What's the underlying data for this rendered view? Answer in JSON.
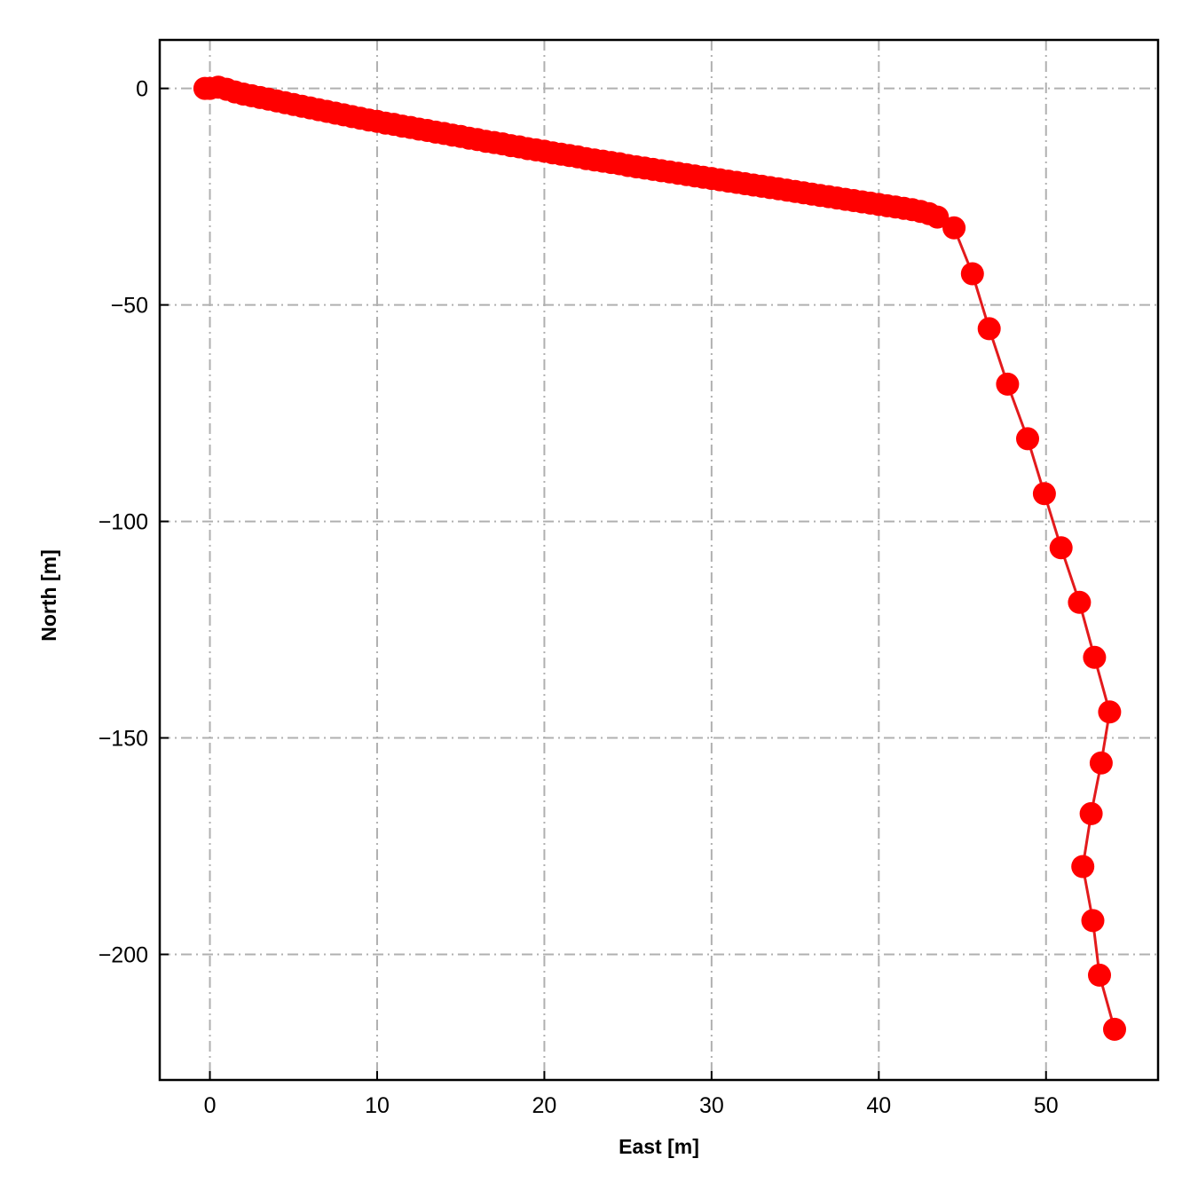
{
  "chart_data": {
    "type": "line",
    "title": "",
    "xlabel": "East [m]",
    "ylabel": "North [m]",
    "xlim": [
      -3,
      56.7
    ],
    "ylim": [
      -229,
      11.2
    ],
    "xticks": [
      0,
      10,
      20,
      30,
      40,
      50
    ],
    "yticks": [
      0,
      -50,
      -100,
      -150,
      -200
    ],
    "xtick_labels": [
      "0",
      "10",
      "20",
      "30",
      "40",
      "50"
    ],
    "ytick_labels": [
      "0",
      "−50",
      "−100",
      "−150",
      "−200"
    ],
    "grid": true,
    "grid_style": "dash-dot",
    "grid_color": "#b0b0b0",
    "line_color": "#e31a1c",
    "marker_color": "#ff0000",
    "marker": "circle",
    "series": [
      {
        "x": [
          -0.3,
          0.0,
          0.5,
          1.0,
          1.5,
          2.0,
          2.5,
          3.0,
          3.5,
          4.0,
          4.5,
          5.0,
          5.5,
          6.0,
          6.5,
          7.0,
          7.5,
          8.0,
          8.5,
          9.0,
          9.5,
          10.0,
          10.5,
          11.0,
          11.5,
          12.0,
          12.5,
          13.0,
          13.5,
          14.0,
          14.5,
          15.0,
          15.5,
          16.0,
          16.5,
          17.0,
          17.5,
          18.0,
          18.5,
          19.0,
          19.5,
          20.0,
          20.5,
          21.0,
          21.5,
          22.0,
          22.5,
          23.0,
          23.5,
          24.0,
          24.5,
          25.0,
          25.5,
          26.0,
          26.5,
          27.0,
          27.5,
          28.0,
          28.5,
          29.0,
          29.5,
          30.0,
          30.5,
          31.0,
          31.5,
          32.0,
          32.5,
          33.0,
          33.5,
          34.0,
          34.5,
          35.0,
          35.5,
          36.0,
          36.5,
          37.0,
          37.5,
          38.0,
          38.5,
          39.0,
          39.5,
          40.0,
          40.5,
          41.0,
          41.5,
          42.0,
          42.5,
          43.0,
          43.5,
          44.5,
          45.6,
          46.6,
          47.7,
          48.9,
          49.9,
          50.9,
          52.0,
          52.9,
          53.8,
          53.3,
          52.7,
          52.2,
          52.8,
          53.2,
          54.1
        ],
        "y": [
          0.0,
          0.0,
          0.3,
          -0.2,
          -0.8,
          -1.3,
          -1.7,
          -2.1,
          -2.5,
          -2.9,
          -3.3,
          -3.7,
          -4.1,
          -4.5,
          -4.9,
          -5.3,
          -5.7,
          -6.1,
          -6.5,
          -6.9,
          -7.3,
          -7.6,
          -8.0,
          -8.3,
          -8.7,
          -9.0,
          -9.4,
          -9.7,
          -10.1,
          -10.4,
          -10.8,
          -11.1,
          -11.5,
          -11.8,
          -12.2,
          -12.5,
          -12.8,
          -13.2,
          -13.5,
          -13.9,
          -14.2,
          -14.5,
          -14.9,
          -15.2,
          -15.5,
          -15.8,
          -16.2,
          -16.5,
          -16.8,
          -17.1,
          -17.4,
          -17.8,
          -18.1,
          -18.4,
          -18.7,
          -19.0,
          -19.3,
          -19.6,
          -19.9,
          -20.2,
          -20.5,
          -20.8,
          -21.1,
          -21.4,
          -21.7,
          -22.0,
          -22.3,
          -22.6,
          -22.9,
          -23.2,
          -23.5,
          -23.8,
          -24.1,
          -24.4,
          -24.7,
          -25.0,
          -25.3,
          -25.6,
          -25.9,
          -26.2,
          -26.5,
          -26.8,
          -27.1,
          -27.4,
          -27.7,
          -28.0,
          -28.4,
          -28.9,
          -29.7,
          -32.2,
          -42.8,
          -55.5,
          -68.3,
          -80.9,
          -93.6,
          -106.1,
          -118.7,
          -131.4,
          -144.0,
          -155.8,
          -167.5,
          -179.7,
          -192.2,
          -204.8,
          -217.3
        ]
      }
    ]
  }
}
